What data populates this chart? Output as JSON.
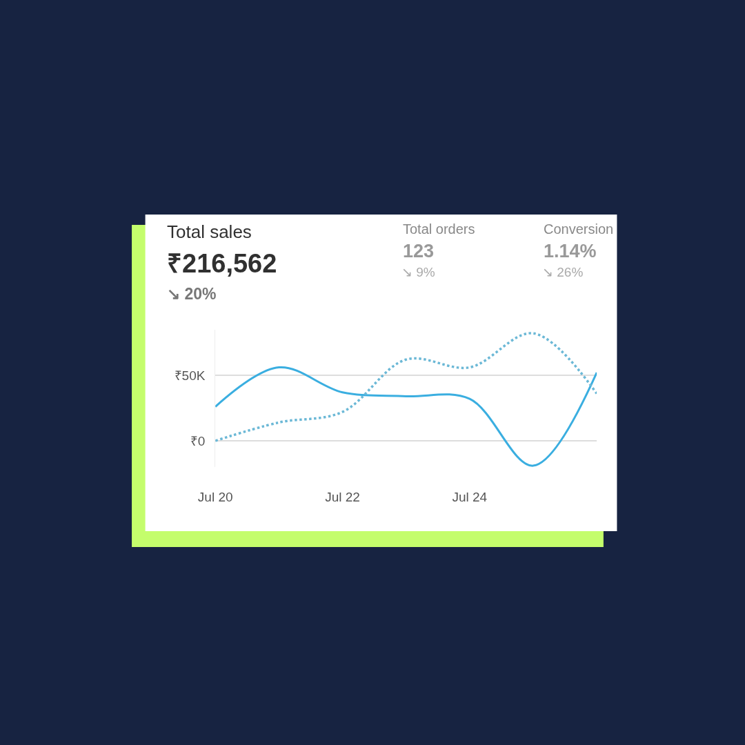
{
  "chart_data": {
    "type": "line",
    "title": "Total sales",
    "categories": [
      "Jul 20",
      null,
      "Jul 22",
      null,
      "Jul 24",
      null,
      null
    ],
    "series": [
      {
        "color": "#3aaee0",
        "line_style": "solid",
        "values": [
          26000,
          56000,
          37000,
          34000,
          32000,
          -19000,
          52000
        ]
      },
      {
        "color": "#6bb8d6",
        "line_style": "dotted",
        "values": [
          0,
          14000,
          22000,
          62000,
          56000,
          82000,
          36000
        ]
      }
    ],
    "yticks": [
      {
        "value": 0,
        "label": "₹0"
      },
      {
        "value": 50000,
        "label": "₹50K"
      }
    ],
    "ylim": [
      -20000,
      85000
    ],
    "grid": "y",
    "marker": "none",
    "annotations": [
      "₹216,562",
      "↘ 20%",
      "Total orders",
      "123",
      "↘ 9%",
      "Conversion",
      "1.14%",
      "↘ 26%"
    ]
  }
}
